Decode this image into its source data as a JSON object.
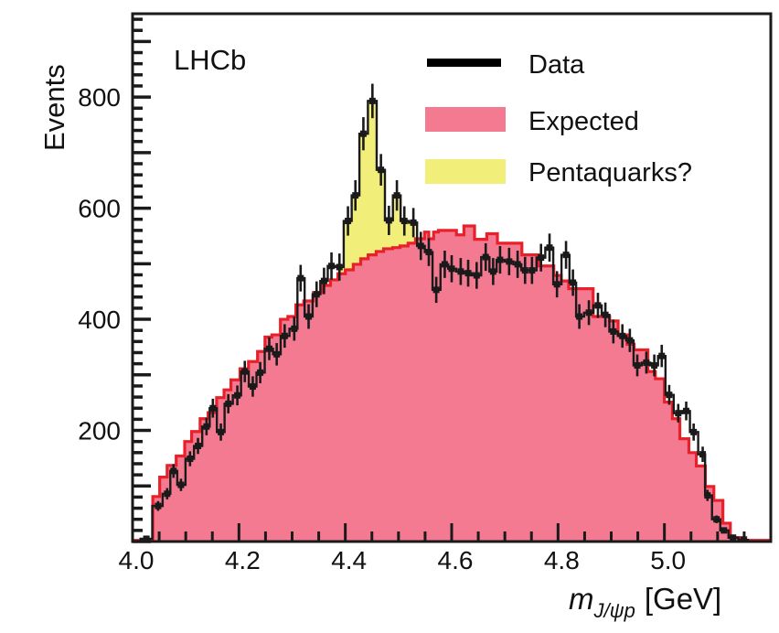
{
  "chart_data": {
    "type": "histogram",
    "title": "",
    "experiment_label": "LHCb",
    "xlabel": {
      "symbol": "m",
      "subscript": "J/ψp",
      "unit": "[GeV]"
    },
    "ylabel": "Events",
    "xlim": [
      4.0,
      5.2
    ],
    "ylim": [
      0,
      950
    ],
    "x_ticks": [
      "4.0",
      "4.2",
      "4.4",
      "4.6",
      "4.8",
      "5.0"
    ],
    "y_ticks": [
      "200",
      "400",
      "600",
      "800"
    ],
    "legend_position": "top-right",
    "legend": [
      {
        "label": "Data",
        "kind": "line",
        "color": "#000000"
      },
      {
        "label": "Expected",
        "kind": "box",
        "color": "#f47a92"
      },
      {
        "label": "Pentaquarks?",
        "kind": "box",
        "color": "#f2ee7a"
      }
    ],
    "colors": {
      "expected_fill": "#f47a92",
      "expected_line": "#e8202a",
      "pentaquark_fill": "#f2ee7a",
      "data": "#1a1a1a"
    },
    "expected": {
      "bin_edges": [
        4.0,
        4.038,
        4.051,
        4.065,
        4.082,
        4.098,
        4.111,
        4.127,
        4.142,
        4.158,
        4.172,
        4.185,
        4.202,
        4.218,
        4.235,
        4.249,
        4.262,
        4.278,
        4.292,
        4.307,
        4.322,
        4.34,
        4.357,
        4.372,
        4.386,
        4.4,
        4.415,
        4.429,
        4.443,
        4.458,
        4.472,
        4.489,
        4.503,
        4.518,
        4.532,
        4.549,
        4.557,
        4.566,
        4.575,
        4.609,
        4.623,
        4.643,
        4.666,
        4.686,
        4.732,
        4.763,
        4.792,
        4.806,
        4.82,
        4.866,
        4.897,
        4.913,
        4.93,
        4.943,
        4.969,
        4.983,
        5.0,
        5.015,
        5.029,
        5.046,
        5.06,
        5.077,
        5.093,
        5.11,
        5.124,
        5.153,
        5.2
      ],
      "values": [
        2,
        81,
        116,
        137,
        154,
        180,
        198,
        221,
        232,
        259,
        273,
        291,
        311,
        324,
        342,
        368,
        372,
        400,
        405,
        426,
        433,
        448,
        461,
        471,
        482,
        489,
        499,
        509,
        516,
        522,
        527,
        529,
        532,
        537,
        545,
        557,
        545,
        557,
        560,
        552,
        568,
        544,
        554,
        537,
        516,
        496,
        479,
        469,
        455,
        405,
        397,
        372,
        355,
        345,
        306,
        293,
        251,
        221,
        185,
        160,
        136,
        99,
        74,
        33,
        7,
        2
      ]
    },
    "data": {
      "x": [
        4.026,
        4.048,
        4.065,
        4.077,
        4.091,
        4.108,
        4.123,
        4.139,
        4.151,
        4.166,
        4.18,
        4.197,
        4.211,
        4.226,
        4.24,
        4.257,
        4.271,
        4.286,
        4.304,
        4.316,
        4.331,
        4.346,
        4.36,
        4.374,
        4.389,
        4.405,
        4.419,
        4.434,
        4.451,
        4.467,
        4.482,
        4.497,
        4.511,
        4.528,
        4.542,
        4.557,
        4.571,
        4.587,
        4.6,
        4.617,
        4.631,
        4.647,
        4.664,
        4.678,
        4.691,
        4.708,
        4.724,
        4.738,
        4.751,
        4.768,
        4.784,
        4.798,
        4.815,
        4.828,
        4.84,
        4.858,
        4.875,
        4.889,
        4.904,
        4.921,
        4.935,
        4.949,
        4.966,
        4.981,
        4.995,
        5.009,
        5.026,
        5.041,
        5.055,
        5.072,
        5.081,
        5.098,
        5.112,
        5.129,
        5.149
      ],
      "y": [
        5,
        64,
        86,
        127,
        102,
        149,
        172,
        207,
        240,
        197,
        248,
        263,
        306,
        279,
        304,
        347,
        337,
        370,
        383,
        474,
        405,
        445,
        469,
        496,
        494,
        577,
        623,
        734,
        793,
        669,
        578,
        623,
        577,
        574,
        532,
        521,
        453,
        499,
        491,
        486,
        483,
        479,
        512,
        486,
        507,
        504,
        499,
        488,
        488,
        511,
        529,
        463,
        516,
        466,
        405,
        412,
        425,
        408,
        378,
        370,
        362,
        317,
        322,
        317,
        334,
        264,
        231,
        235,
        197,
        157,
        83,
        40,
        20,
        7,
        3
      ]
    },
    "pentaquark_region": [
      4.386,
      4.532
    ]
  }
}
